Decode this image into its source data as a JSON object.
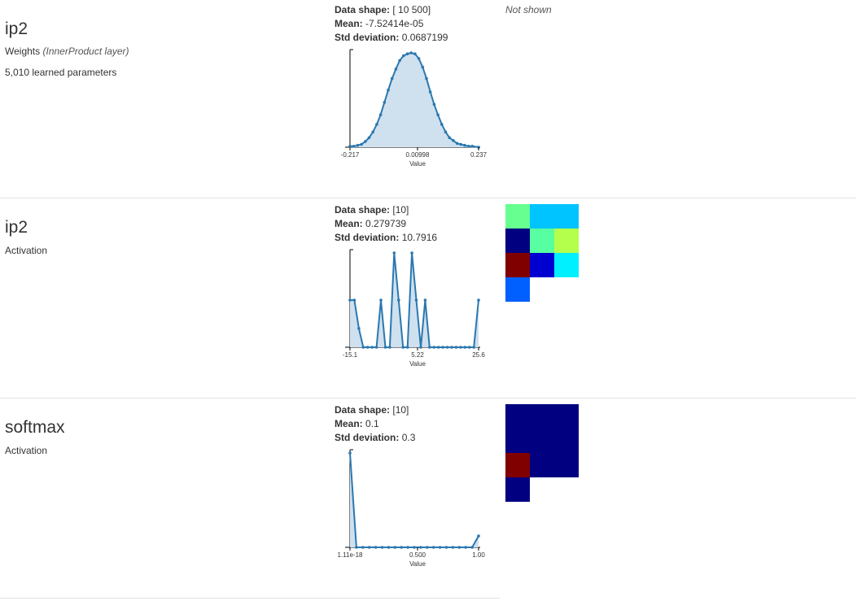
{
  "rows": [
    {
      "layer": "ip2",
      "kind_label": "Weights",
      "kind_detail": "(InnerProduct layer)",
      "params": "5,010 learned parameters",
      "data_shape_label": "Data shape:",
      "data_shape": "[ 10 500]",
      "mean_label": "Mean:",
      "mean": "-7.52414e-05",
      "std_label": "Std deviation:",
      "std": "0.0687199",
      "visualization": "Not shown"
    },
    {
      "layer": "ip2",
      "kind_label": "Activation",
      "data_shape_label": "Data shape:",
      "data_shape": "[10]",
      "mean_label": "Mean:",
      "mean": "0.279739",
      "std_label": "Std deviation:",
      "std": "10.7916",
      "heatmap": [
        "#66ff90",
        "#00c4ff",
        "#00c4ff",
        "#000080",
        "#58ffa0",
        "#b4ff4c",
        "#800000",
        "#0000d0",
        "#00f0ff",
        "#0060ff"
      ]
    },
    {
      "layer": "softmax",
      "kind_label": "Activation",
      "data_shape_label": "Data shape:",
      "data_shape": "[10]",
      "mean_label": "Mean:",
      "mean": "0.1",
      "std_label": "Std deviation:",
      "std": "0.3",
      "heatmap": [
        "#000080",
        "#000080",
        "#000080",
        "#000080",
        "#000080",
        "#000080",
        "#800000",
        "#000080",
        "#000080",
        "#000080"
      ]
    }
  ],
  "chart_data": [
    {
      "type": "area",
      "xlabel": "Value",
      "tick_labels": [
        "-0.217",
        "0.00998",
        "0.237"
      ],
      "xlim": [
        -0.217,
        0.237
      ],
      "x": [
        -0.217,
        -0.2035,
        -0.19,
        -0.1765,
        -0.163,
        -0.1495,
        -0.136,
        -0.1225,
        -0.109,
        -0.0955,
        -0.082,
        -0.0685,
        -0.055,
        -0.0415,
        -0.028,
        -0.0145,
        -0.001,
        0.0125,
        0.026,
        0.0395,
        0.053,
        0.0665,
        0.08,
        0.0935,
        0.107,
        0.1205,
        0.134,
        0.1475,
        0.161,
        0.1745,
        0.188,
        0.2015,
        0.215,
        0.237
      ],
      "y": [
        0.01,
        0.01,
        0.02,
        0.03,
        0.06,
        0.1,
        0.16,
        0.24,
        0.34,
        0.47,
        0.6,
        0.72,
        0.82,
        0.91,
        0.96,
        0.98,
        0.99,
        0.98,
        0.93,
        0.84,
        0.72,
        0.58,
        0.45,
        0.34,
        0.24,
        0.16,
        0.1,
        0.07,
        0.04,
        0.03,
        0.02,
        0.01,
        0.01,
        0.0
      ]
    },
    {
      "type": "area",
      "xlabel": "Value",
      "tick_labels": [
        "-15.1",
        "5.22",
        "25.6"
      ],
      "xlim": [
        -15.1,
        25.6
      ],
      "x": [
        -15.1,
        -13.7,
        -12.3,
        -10.9,
        -9.5,
        -8.1,
        -6.7,
        -5.3,
        -3.9,
        -2.5,
        -1.1,
        0.3,
        1.7,
        3.1,
        4.5,
        5.9,
        7.3,
        8.7,
        10.1,
        11.5,
        12.9,
        14.3,
        15.7,
        17.1,
        18.5,
        19.9,
        21.3,
        22.7,
        24.1,
        25.6
      ],
      "y": [
        0.5,
        0.5,
        0.2,
        0.0,
        0.0,
        0.0,
        0.0,
        0.5,
        0.0,
        0.0,
        1.0,
        0.5,
        0.0,
        0.0,
        1.0,
        0.5,
        0.0,
        0.5,
        0.0,
        0.0,
        0.0,
        0.0,
        0.0,
        0.0,
        0.0,
        0.0,
        0.0,
        0.0,
        0.0,
        0.5
      ]
    },
    {
      "type": "area",
      "xlabel": "Value",
      "tick_labels": [
        "1.11e-18",
        "0.500",
        "1.00"
      ],
      "xlim": [
        0,
        1.0
      ],
      "x": [
        0,
        0.05,
        0.1,
        0.15,
        0.2,
        0.25,
        0.3,
        0.35,
        0.4,
        0.45,
        0.5,
        0.55,
        0.6,
        0.65,
        0.7,
        0.75,
        0.8,
        0.85,
        0.9,
        0.95,
        1.0
      ],
      "y": [
        1.0,
        0.0,
        0.0,
        0.0,
        0.0,
        0.0,
        0.0,
        0.0,
        0.0,
        0.0,
        0.0,
        0.0,
        0.0,
        0.0,
        0.0,
        0.0,
        0.0,
        0.0,
        0.0,
        0.0,
        0.12
      ]
    }
  ]
}
